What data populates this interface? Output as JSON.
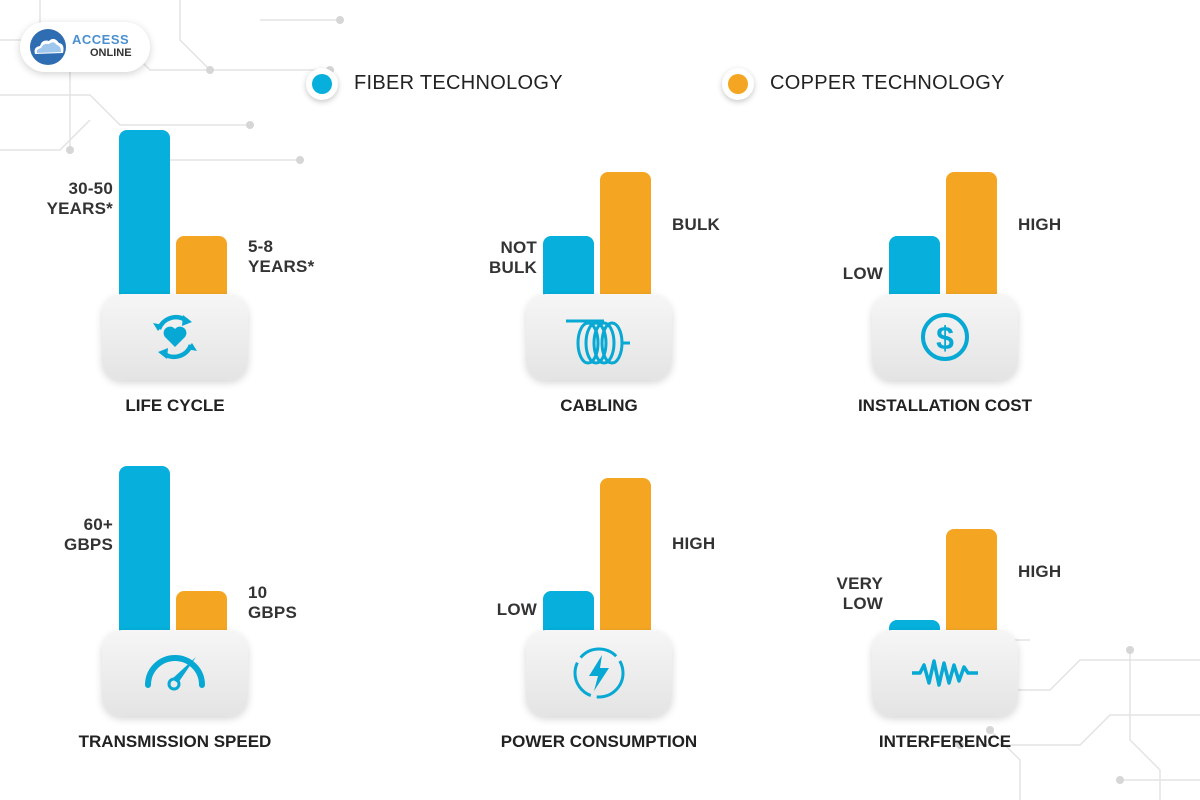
{
  "logo": {
    "line1": "ACCESS",
    "line2": "ONLINE"
  },
  "legend": [
    {
      "label": "FIBER TECHNOLOGY",
      "color": "#07b0dc"
    },
    {
      "label": "COPPER TECHNOLOGY",
      "color": "#f4a623"
    }
  ],
  "chart_data": {
    "type": "bar",
    "series": [
      {
        "name": "FIBER TECHNOLOGY",
        "color": "#07b0dc",
        "values": [
          100,
          36,
          36,
          100,
          25,
          7
        ]
      },
      {
        "name": "COPPER TECHNOLOGY",
        "color": "#f4a623",
        "values": [
          36,
          75,
          75,
          25,
          93,
          62
        ]
      }
    ],
    "panels": [
      {
        "category": "LIFE CYCLE",
        "icon": "heart-recycle-icon",
        "fiber_label": [
          "30-50",
          "YEARS*"
        ],
        "copper_label": [
          "5-8",
          "YEARS*"
        ]
      },
      {
        "category": "CABLING",
        "icon": "cable-coil-icon",
        "fiber_label": [
          "NOT",
          "BULK"
        ],
        "copper_label": [
          "BULK"
        ]
      },
      {
        "category": "INSTALLATION COST",
        "icon": "dollar-icon",
        "fiber_label": [
          "LOW"
        ],
        "copper_label": [
          "HIGH"
        ]
      },
      {
        "category": "TRANSMISSION SPEED",
        "icon": "speedometer-icon",
        "fiber_label": [
          "60+",
          "GBPS"
        ],
        "copper_label": [
          "10",
          "GBPS"
        ]
      },
      {
        "category": "POWER CONSUMPTION",
        "icon": "lightning-bolt-icon",
        "fiber_label": [
          "LOW"
        ],
        "copper_label": [
          "HIGH"
        ]
      },
      {
        "category": "INTERFERENCE",
        "icon": "waveform-icon",
        "fiber_label": [
          "VERY",
          "LOW"
        ],
        "copper_label": [
          "HIGH"
        ]
      }
    ]
  }
}
